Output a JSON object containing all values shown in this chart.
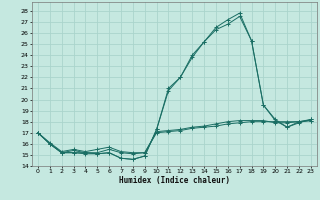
{
  "xlabel": "Humidex (Indice chaleur)",
  "bg_color": "#c5e8e0",
  "grid_color": "#aad4cc",
  "line_color": "#1a6e64",
  "xlim": [
    -0.5,
    23.5
  ],
  "ylim": [
    14,
    28.8
  ],
  "yticks": [
    14,
    15,
    16,
    17,
    18,
    19,
    20,
    21,
    22,
    23,
    24,
    25,
    26,
    27,
    28
  ],
  "xticks": [
    0,
    1,
    2,
    3,
    4,
    5,
    6,
    7,
    8,
    9,
    10,
    11,
    12,
    13,
    14,
    15,
    16,
    17,
    18,
    19,
    20,
    21,
    22,
    23
  ],
  "series": [
    {
      "x": [
        0,
        1,
        2,
        3,
        4,
        5,
        6,
        7,
        8,
        9,
        10,
        11,
        12,
        13,
        14,
        15,
        16,
        17,
        18,
        19,
        20,
        21,
        22,
        23
      ],
      "y": [
        17.0,
        16.0,
        15.2,
        15.2,
        15.2,
        15.1,
        15.2,
        14.7,
        14.6,
        14.9,
        17.3,
        21.0,
        22.0,
        24.0,
        25.2,
        26.5,
        27.2,
        27.8,
        25.3,
        19.5,
        18.2,
        17.5,
        18.0,
        18.2
      ]
    },
    {
      "x": [
        0,
        1,
        2,
        3,
        4,
        5,
        6,
        7,
        8,
        9,
        10,
        11,
        12,
        13,
        14,
        15,
        16,
        17,
        18,
        19,
        20,
        21,
        22,
        23
      ],
      "y": [
        17.0,
        16.0,
        15.2,
        15.2,
        15.1,
        15.1,
        15.2,
        14.7,
        14.6,
        14.9,
        17.3,
        20.8,
        22.0,
        23.8,
        25.2,
        26.3,
        26.8,
        27.5,
        25.3,
        19.5,
        18.1,
        17.5,
        17.9,
        18.2
      ]
    },
    {
      "x": [
        0,
        1,
        2,
        3,
        4,
        5,
        6,
        7,
        8,
        9,
        10,
        11,
        12,
        13,
        14,
        15,
        16,
        17,
        18,
        19,
        20,
        21,
        22,
        23
      ],
      "y": [
        17.0,
        16.0,
        15.2,
        15.4,
        15.2,
        15.2,
        15.5,
        15.2,
        15.1,
        15.2,
        17.0,
        17.1,
        17.2,
        17.4,
        17.5,
        17.6,
        17.8,
        17.9,
        18.0,
        18.0,
        18.0,
        18.0,
        18.0,
        18.1
      ]
    },
    {
      "x": [
        0,
        1,
        2,
        3,
        4,
        5,
        6,
        7,
        8,
        9,
        10,
        11,
        12,
        13,
        14,
        15,
        16,
        17,
        18,
        19,
        20,
        21,
        22,
        23
      ],
      "y": [
        17.0,
        16.1,
        15.3,
        15.5,
        15.3,
        15.5,
        15.7,
        15.3,
        15.2,
        15.2,
        17.1,
        17.2,
        17.3,
        17.5,
        17.6,
        17.8,
        18.0,
        18.1,
        18.1,
        18.1,
        17.9,
        17.9,
        18.0,
        18.1
      ]
    }
  ]
}
